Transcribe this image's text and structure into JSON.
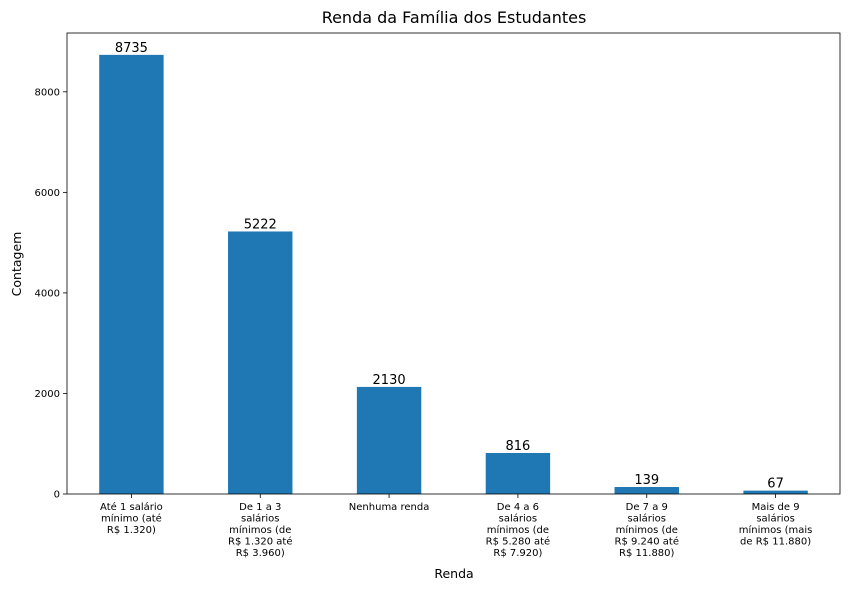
{
  "chart_data": {
    "type": "bar",
    "title": "Renda da Família dos Estudantes",
    "xlabel": "Renda",
    "ylabel": "Contagem",
    "ylim": [
      0,
      9170
    ],
    "yticks": [
      0,
      2000,
      4000,
      6000,
      8000
    ],
    "grid": false,
    "bar_color": "#1f77b4",
    "categories": [
      [
        "Até 1 salário",
        "mínimo (até",
        "R$ 1.320)"
      ],
      [
        "De 1 a 3",
        "salários",
        "mínimos (de",
        "R$ 1.320 até",
        "R$ 3.960)"
      ],
      [
        "Nenhuma renda"
      ],
      [
        "De 4 a 6",
        "salários",
        "mínimos (de",
        "R$ 5.280 até",
        "R$ 7.920)"
      ],
      [
        "De 7 a 9",
        "salários",
        "mínimos (de",
        "R$ 9.240 até",
        "R$ 11.880)"
      ],
      [
        "Mais de 9",
        "salários",
        "mínimos (mais",
        "de R$ 11.880)"
      ]
    ],
    "values": [
      8735,
      5222,
      2130,
      816,
      139,
      67
    ]
  }
}
